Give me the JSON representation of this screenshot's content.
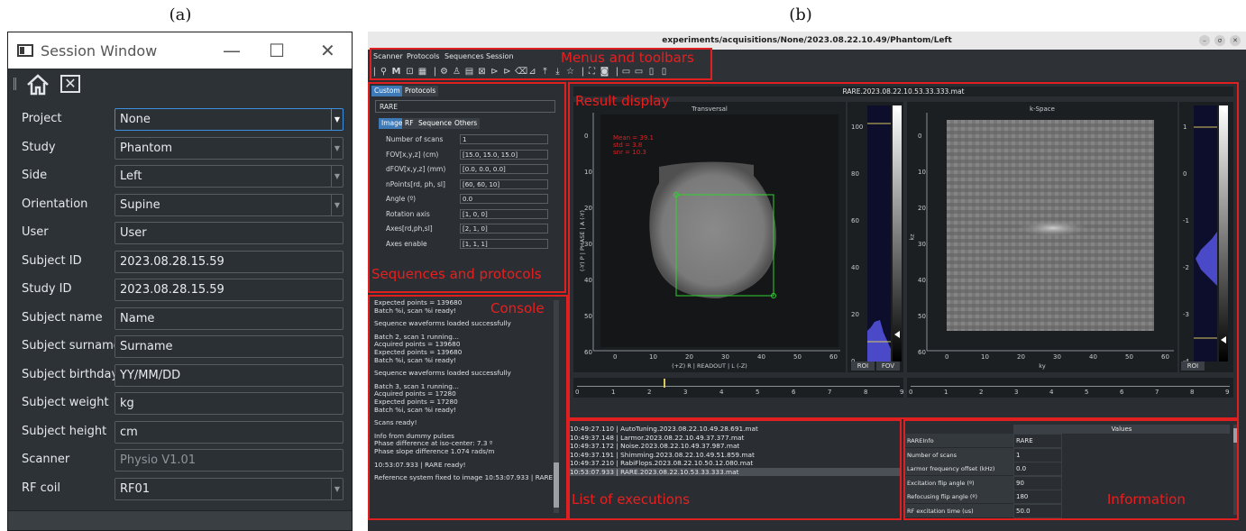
{
  "panel_labels": {
    "a": "(a)",
    "b": "(b)"
  },
  "session_window": {
    "title": "Session Window",
    "controls": {
      "minimize": "—",
      "maximize": "☐",
      "close": "✕"
    },
    "toolbar": {
      "close_glyph": "✕"
    },
    "rows": [
      {
        "label": "Project",
        "value": "None",
        "dropdown": true,
        "active": true
      },
      {
        "label": "Study",
        "value": "Phantom",
        "dropdown": true
      },
      {
        "label": "Side",
        "value": "Left",
        "dropdown": true
      },
      {
        "label": "Orientation",
        "value": "Supine",
        "dropdown": true
      },
      {
        "label": "User",
        "value": "User"
      },
      {
        "label": "Subject ID",
        "value": "2023.08.28.15.59"
      },
      {
        "label": "Study ID",
        "value": "2023.08.28.15.59"
      },
      {
        "label": "Subject name",
        "value": "Name"
      },
      {
        "label": "Subject surname",
        "value": "Surname"
      },
      {
        "label": "Subject birthday",
        "value": "YY/MM/DD"
      },
      {
        "label": "Subject weight",
        "value": "kg"
      },
      {
        "label": "Subject height",
        "value": "cm"
      },
      {
        "label": "Scanner",
        "value": "Physio V1.01",
        "dim": true
      },
      {
        "label": "RF coil",
        "value": "RF01",
        "dropdown": true
      }
    ]
  },
  "main_window": {
    "title": "experiments/acquisitions/None/2023.08.22.10.49/Phantom/Left",
    "title_buttons": [
      "–",
      "σ",
      "✕"
    ],
    "menu": [
      "Scanner",
      "Protocols",
      "Sequences",
      "Session"
    ],
    "annotations": {
      "menus": "Menus and toolbars",
      "result": "Result display",
      "sequences": "Sequences and protocols",
      "console": "Console",
      "executions": "List of executions",
      "information": "Information"
    },
    "seq_panel": {
      "top_tabs": [
        "Custom",
        "Protocols"
      ],
      "sequence_selected": "RARE",
      "sub_tabs": [
        "Image",
        "RF",
        "Sequence",
        "Others"
      ],
      "params": [
        {
          "label": "Number of scans",
          "value": "1"
        },
        {
          "label": "FOV[x,y,z] (cm)",
          "value": "[15.0, 15.0, 15.0]"
        },
        {
          "label": "dFOV[x,y,z] (mm)",
          "value": "[0.0, 0.0, 0.0]"
        },
        {
          "label": "nPoints[rd, ph, sl]",
          "value": "[60, 60, 10]"
        },
        {
          "label": "Angle (º)",
          "value": "0.0"
        },
        {
          "label": "Rotation axis",
          "value": "[1, 0, 0]"
        },
        {
          "label": "Axes[rd,ph,sl]",
          "value": "[2, 1, 0]"
        },
        {
          "label": "Axes enable",
          "value": "[1, 1, 1]"
        }
      ]
    },
    "console_lines": [
      "Expected points = 139680",
      "Batch %i, scan %i ready!",
      "",
      "Sequence waveforms loaded successfully",
      "",
      "Batch 2, scan 1 running...",
      "Acquired points = 139680",
      "Expected points = 139680",
      "Batch %i, scan %i ready!",
      "",
      "Sequence waveforms loaded successfully",
      "",
      "Batch 3, scan 1 running...",
      "Acquired points = 17280",
      "Expected points = 17280",
      "Batch %i, scan %i ready!",
      "",
      "Scans ready!",
      "",
      "Info from dummy pulses",
      "Phase difference at iso-center: 7.3 º",
      "Phase slope difference 1.074 rads/m",
      "",
      "10:53:07.933 | RARE ready!",
      "",
      "Reference system fixed to image 10:53:07.933 | RARE"
    ],
    "result": {
      "file": "RARE.2023.08.22.10.53.33.333.mat",
      "left_plot": {
        "title": "Transversal",
        "y_ticks": [
          "0",
          "10",
          "20",
          "30",
          "40",
          "50",
          "60"
        ],
        "x_ticks": [
          "0",
          "10",
          "20",
          "30",
          "40",
          "50",
          "60"
        ],
        "ylabel": "(-Y) P | PHASE | A (-Y)",
        "xlabel": "(+Z) R | READOUT | L (-Z)",
        "stats": [
          "Mean = 39.1",
          "std = 3.8",
          "snr = 10.3"
        ],
        "hist_ticks": [
          "100",
          "80",
          "60",
          "40",
          "20",
          "0"
        ],
        "buttons": [
          "ROI",
          "FOV"
        ]
      },
      "right_plot": {
        "title": "k-Space",
        "y_ticks": [
          "0",
          "10",
          "20",
          "30",
          "40",
          "50",
          "60"
        ],
        "x_ticks": [
          "0",
          "10",
          "20",
          "30",
          "40",
          "50",
          "60"
        ],
        "ylabel": "kz",
        "xlabel": "ky",
        "hist_ticks": [
          "1",
          "0",
          "-1",
          "-2",
          "-3",
          "-4"
        ],
        "buttons": [
          "ROI"
        ]
      },
      "slider_ticks": [
        "0",
        "1",
        "2",
        "3",
        "4",
        "5",
        "6",
        "7",
        "8",
        "9"
      ]
    },
    "executions": [
      "10:49:27.110 | AutoTuning.2023.08.22.10.49.28.691.mat",
      "10:49:37.148 | Larmor.2023.08.22.10.49.37.377.mat",
      "10:49:37.172 | Noise.2023.08.22.10.49.37.987.mat",
      "10:49:37.191 | Shimming.2023.08.22.10.49.51.859.mat",
      "10:49:37.210 | RabiFlops.2023.08.22.10.50.12.080.mat",
      "10:53:07.933 | RARE.2023.08.22.10.53.33.333.mat"
    ],
    "info": {
      "header": "Values",
      "rows": [
        {
          "key": "RAREInfo",
          "value": "RARE"
        },
        {
          "key": "Number of scans",
          "value": "1"
        },
        {
          "key": "Larmor frequency offset (kHz)",
          "value": "0.0"
        },
        {
          "key": "Excitation flip angle (º)",
          "value": "90"
        },
        {
          "key": "Refocusing flip angle (º)",
          "value": "180"
        },
        {
          "key": "RF excitation time (us)",
          "value": "50.0"
        }
      ]
    }
  }
}
